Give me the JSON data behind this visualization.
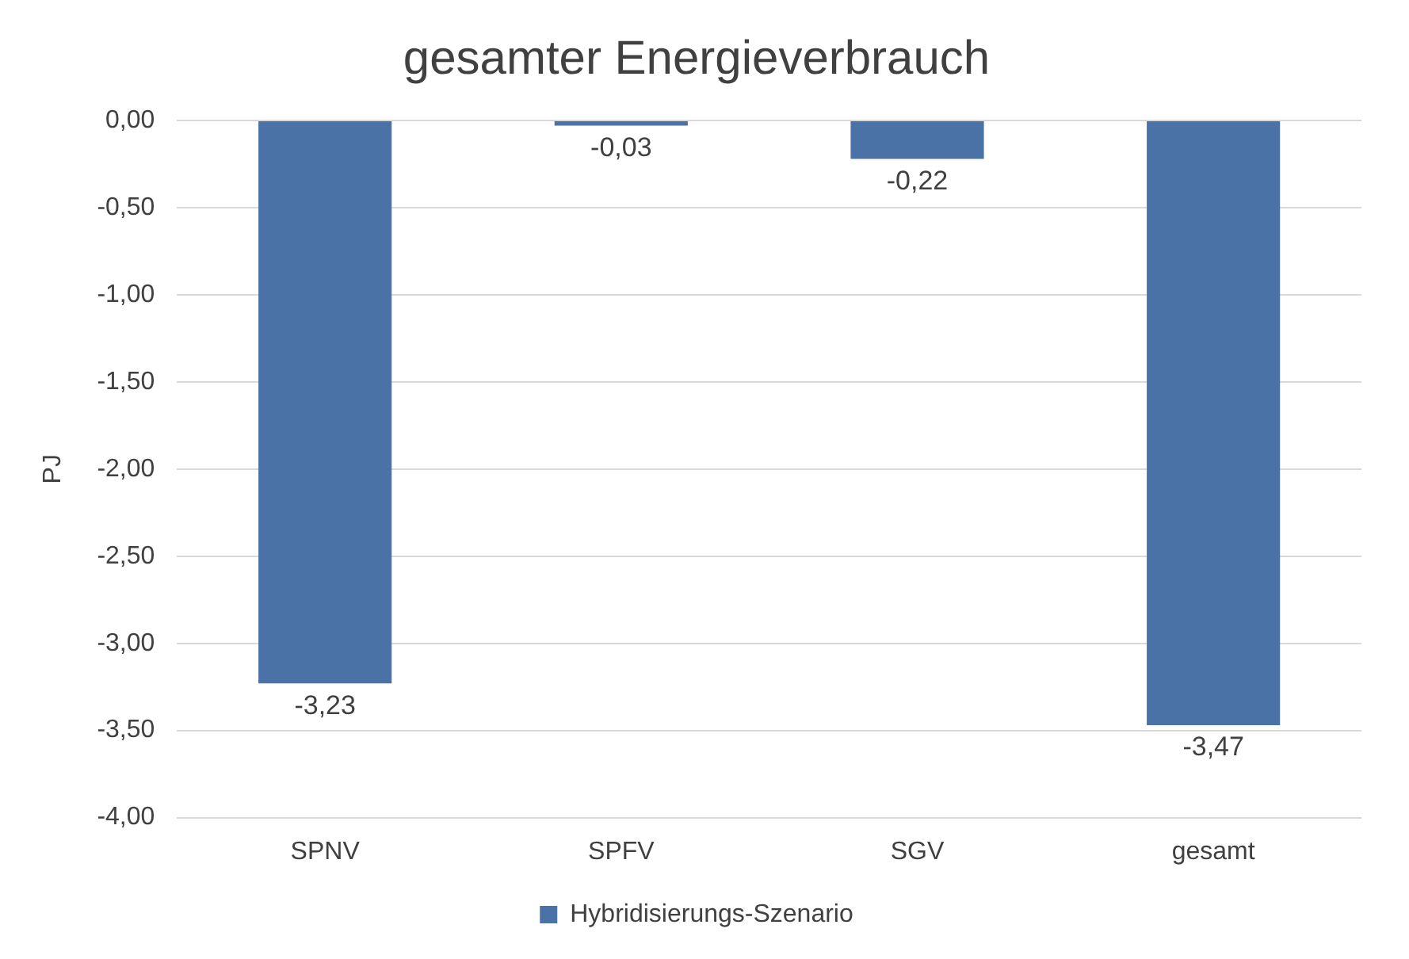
{
  "chart_data": {
    "type": "bar",
    "title": "gesamter Energieverbrauch",
    "ylabel": "PJ",
    "categories": [
      "SPNV",
      "SPFV",
      "SGV",
      "gesamt"
    ],
    "series": [
      {
        "name": "Hybridisierungs-Szenario",
        "color": "#4a72a6",
        "values": [
          -3.23,
          -0.03,
          -0.22,
          -3.47
        ],
        "value_labels": [
          "-3,23",
          "-0,03",
          "-0,22",
          "-3,47"
        ]
      }
    ],
    "ylim": [
      -4,
      0
    ],
    "yticks": [
      {
        "value": 0,
        "label": "0,00"
      },
      {
        "value": -0.5,
        "label": "-0,50"
      },
      {
        "value": -1,
        "label": "-1,00"
      },
      {
        "value": -1.5,
        "label": "-1,50"
      },
      {
        "value": -2,
        "label": "-2,00"
      },
      {
        "value": -2.5,
        "label": "-2,50"
      },
      {
        "value": -3,
        "label": "-3,00"
      },
      {
        "value": -3.5,
        "label": "-3,50"
      },
      {
        "value": -4,
        "label": "-4,00"
      }
    ],
    "grid": "y",
    "legend": "bottom"
  }
}
